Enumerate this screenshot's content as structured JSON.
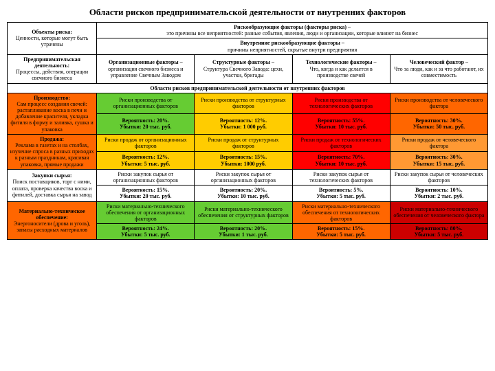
{
  "title": "Области рисков предпринимательской деятельности от внутренних факторов",
  "colors": {
    "white": "#ffffff",
    "green": "#66cc33",
    "yellow": "#ffcc00",
    "orange": "#ff6600",
    "orangeLt": "#ff9933",
    "red": "#ff0000",
    "redDk": "#cc0000"
  },
  "r1": {
    "c0h": "Объекты риска:",
    "c0t": "Ценности, которые могут быть утрачены",
    "c1h": "Рискообразующие факторы (факторы риска) –",
    "c1t": "это причины все неприятностей: разные события, явления, люди и организации, которые влияют на бизнес"
  },
  "r2": {
    "h": "Внутренние рискообразующие факторы –",
    "t": "причины неприятностей, скрытые внутри предприятия"
  },
  "r3": {
    "c0h": "Предпринимательская деятельность:",
    "c0t": "Процессы, действия, операции свечного бизнеса",
    "c1h": "Организационные факторы –",
    "c1t": "организация свечного бизнеса и управление Свечным Заводом",
    "c2h": "Структурные факторы –",
    "c2t": "Структура Свечного Завода: цехи, участки, бригады",
    "c3h": "Технологические факторы –",
    "c3t": "Что, когда и как делается в производстве свечей",
    "c4h": "Человеческий фактор –",
    "c4t": "Что за люди, как и за что работают, их совместимость"
  },
  "r4": "Области рисков предпринимательской деятельности от внутренних факторов",
  "rows": [
    {
      "c0h": "Производство:",
      "c0t": "Сам процесс создания свечей: растапливание воска в печи и добавление красителя, укладка фитиля в форму и заливка, сушка и упаковка",
      "c0bg": "orange",
      "cells": [
        {
          "t": "Риски производства от организационных факторов",
          "p": "Вероятность: 20%.",
          "u": "Убытки: 20 тыс. руб.",
          "bg": "green"
        },
        {
          "t": "Риски производства от структурных факторов",
          "p": "Вероятность: 12%.",
          "u": "Убытки: 1 000 руб.",
          "bg": "yellow"
        },
        {
          "t": "Риски производства от технологических факторов",
          "p": "Вероятность: 55%.",
          "u": "Убытки: 10 тыс. руб.",
          "bg": "red"
        },
        {
          "t": "Риски производства от человеческого фактора",
          "p": "Вероятность: 30%.",
          "u": "Убытки: 50 тыс. руб.",
          "bg": "orange"
        }
      ]
    },
    {
      "c0h": "Продажа:",
      "c0t": "Реклама в газетах и на столбах, изучение спроса в разных приходах к разным праздникам, красивая упаковка, прямые продажи",
      "c0bg": "orange",
      "cells": [
        {
          "t": "Риски продаж от организационных факторов",
          "p": "Вероятность: 12%.",
          "u": "Убытки: 5 тыс. руб.",
          "bg": "yellow"
        },
        {
          "t": "Риски продаж от структурных факторов",
          "p": "Вероятность: 15%.",
          "u": "Убытки: 1000 руб.",
          "bg": "yellow"
        },
        {
          "t": "Риски продаж от технологических факторов",
          "p": "Вероятность: 70%.",
          "u": "Убытки: 10 тыс. руб.",
          "bg": "red"
        },
        {
          "t": "Риски продаж от человеческого фактора",
          "p": "Вероятность: 30%.",
          "u": "Убытки: 15 тыс. руб.",
          "bg": "orangeLt"
        }
      ]
    },
    {
      "c0h": "Закупки сырья:",
      "c0t": "Поиск поставщиков, торг с ними, оплата, проверка качества воска и фитилей, доставка сырья на завод",
      "c0bg": "white",
      "cells": [
        {
          "t": "Риски закупок сырья от организационных факторов",
          "p": "Вероятность: 15%.",
          "u": "Убытки: 20 тыс. руб.",
          "bg": "white"
        },
        {
          "t": "Риски закупок сырья от организационных факторов",
          "p": "Вероятность: 20%.",
          "u": "Убытки: 10 тыс. руб.",
          "bg": "white"
        },
        {
          "t": "Риски закупок сырья от технологических факторов",
          "p": "Вероятность: 5%.",
          "u": "Убытки: 5 тыс. руб.",
          "bg": "white"
        },
        {
          "t": "Риски закупок сырья от человеческих факторов",
          "p": "Вероятность: 10%.",
          "u": "Убытки: 2 тыс. руб.",
          "bg": "white"
        }
      ]
    },
    {
      "c0h": "Материально-техническое обеспечение:",
      "c0t": "Энергоносители (дрова и уголь), запасы расходных материалов",
      "c0bg": "orange",
      "cells": [
        {
          "t": "Риски материально-технического обеспечения от организационных факторов",
          "p": "Вероятность: 24%.",
          "u": "Убытки: 5 тыс. руб.",
          "bg": "green"
        },
        {
          "t": "Риски материально-технического обеспечения от структурных факторов",
          "p": "Вероятность: 20%.",
          "u": "Убытки: 1 тыс. руб.",
          "bg": "green"
        },
        {
          "t": "Риски материально-технического обеспечения от технологических факторов",
          "p": "Вероятность: 15%.",
          "u": "Убытки: 5 тыс. руб.",
          "bg": "orange"
        },
        {
          "t": "Риски материально-технического обеспечения от человеческого фактора",
          "p": "Вероятность: 80%.",
          "u": "Убытки: 5 тыс. руб.",
          "bg": "redDk"
        }
      ]
    }
  ]
}
